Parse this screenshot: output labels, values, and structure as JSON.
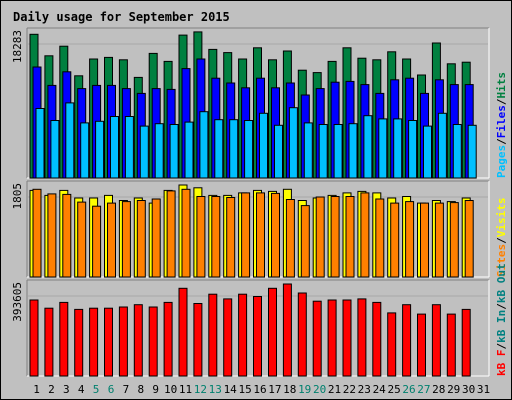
{
  "chart_data": {
    "type": "bar",
    "title": "Daily usage for September 2015",
    "colors": {
      "background": "#c0c0c0",
      "plot": "#c0c0c0",
      "title": "#0000cc",
      "hits": "#008040",
      "files": "#0000ff",
      "pages": "#00c0ff",
      "visits": "#ffff00",
      "sites": "#ff8000",
      "kb_in": "#008080",
      "kb_out": "#0000ff",
      "kb_f": "#ff0000",
      "weekday_label": "#000000",
      "weekend_label": "#00806e"
    },
    "days": [
      "1",
      "2",
      "3",
      "4",
      "5",
      "6",
      "7",
      "8",
      "9",
      "10",
      "11",
      "12",
      "13",
      "14",
      "15",
      "16",
      "17",
      "18",
      "19",
      "20",
      "21",
      "22",
      "23",
      "24",
      "25",
      "26",
      "27",
      "28",
      "29",
      "30",
      "31"
    ],
    "weekend_days": [
      "5",
      "6",
      "12",
      "13",
      "19",
      "20",
      "26",
      "27"
    ],
    "panels": [
      {
        "key": "hits",
        "max_label": "18283",
        "ymax": 18283,
        "legend": [
          {
            "label": "Pages",
            "color_key": "pages"
          },
          {
            "label": "/",
            "color_key": "sep"
          },
          {
            "label": "Files",
            "color_key": "files"
          },
          {
            "label": "/",
            "color_key": "sep"
          },
          {
            "label": "Hits",
            "color_key": "hits"
          }
        ],
        "series": [
          {
            "name": "Hits",
            "color_key": "hits",
            "values": [
              18000,
              15300,
              16500,
              12800,
              14900,
              15100,
              14800,
              12600,
              15600,
              14600,
              17900,
              18300,
              16100,
              15700,
              14900,
              16300,
              14800,
              15900,
              13500,
              13200,
              14600,
              16300,
              15000,
              14800,
              15800,
              14900,
              12900,
              16900,
              14300,
              14500
            ]
          },
          {
            "name": "Files",
            "color_key": "files",
            "values": [
              13900,
              11600,
              13300,
              11200,
              11600,
              11600,
              11200,
              10600,
              11200,
              11100,
              13700,
              14900,
              12500,
              11900,
              11300,
              12500,
              11300,
              11900,
              10400,
              11200,
              12000,
              12100,
              11700,
              10600,
              12300,
              12500,
              10600,
              12300,
              11700,
              11700
            ]
          },
          {
            "name": "Pages",
            "color_key": "pages",
            "values": [
              8700,
              7200,
              9400,
              6900,
              7100,
              7700,
              7700,
              6500,
              6800,
              6700,
              7000,
              8300,
              7300,
              7300,
              7200,
              8100,
              6600,
              8800,
              6900,
              6700,
              6700,
              6800,
              7800,
              7400,
              7400,
              7200,
              6500,
              8100,
              6700,
              6600
            ]
          }
        ]
      },
      {
        "key": "visits",
        "max_label": "1805",
        "ymax": 1805,
        "legend": [
          {
            "label": "Sites",
            "color_key": "sites"
          },
          {
            "label": "/",
            "color_key": "sep"
          },
          {
            "label": "Visits",
            "color_key": "visits"
          }
        ],
        "series": [
          {
            "name": "Visits",
            "color_key": "visits",
            "values": [
              1700,
              1600,
              1700,
              1550,
              1550,
              1600,
              1500,
              1550,
              1450,
              1700,
              1805,
              1750,
              1600,
              1600,
              1650,
              1700,
              1680,
              1720,
              1500,
              1550,
              1600,
              1650,
              1680,
              1650,
              1550,
              1580,
              1450,
              1500,
              1480,
              1550
            ]
          },
          {
            "name": "Sites",
            "color_key": "sites",
            "values": [
              1720,
              1630,
              1620,
              1470,
              1390,
              1450,
              1480,
              1500,
              1530,
              1690,
              1720,
              1580,
              1580,
              1560,
              1650,
              1650,
              1640,
              1520,
              1400,
              1570,
              1580,
              1580,
              1650,
              1530,
              1450,
              1480,
              1450,
              1450,
              1460,
              1500
            ]
          }
        ]
      },
      {
        "key": "kbytes",
        "max_label": "393605",
        "ymax": 393605,
        "legend": [
          {
            "label": "kB F",
            "color_key": "kb_f"
          },
          {
            "label": "/",
            "color_key": "sep"
          },
          {
            "label": "kB In",
            "color_key": "kb_in"
          },
          {
            "label": "/",
            "color_key": "sep"
          },
          {
            "label": "kB Out",
            "color_key": "kb_in"
          }
        ],
        "series": [
          {
            "name": "kB F",
            "color_key": "kb_f",
            "values": [
              325000,
              290000,
              315000,
              285000,
              290000,
              290000,
              295000,
              305000,
              295000,
              315000,
              375000,
              310000,
              350000,
              330000,
              350000,
              340000,
              375000,
              393605,
              355000,
              320000,
              325000,
              325000,
              330000,
              315000,
              270000,
              305000,
              265000,
              305000,
              265000,
              285000
            ]
          }
        ]
      }
    ]
  }
}
